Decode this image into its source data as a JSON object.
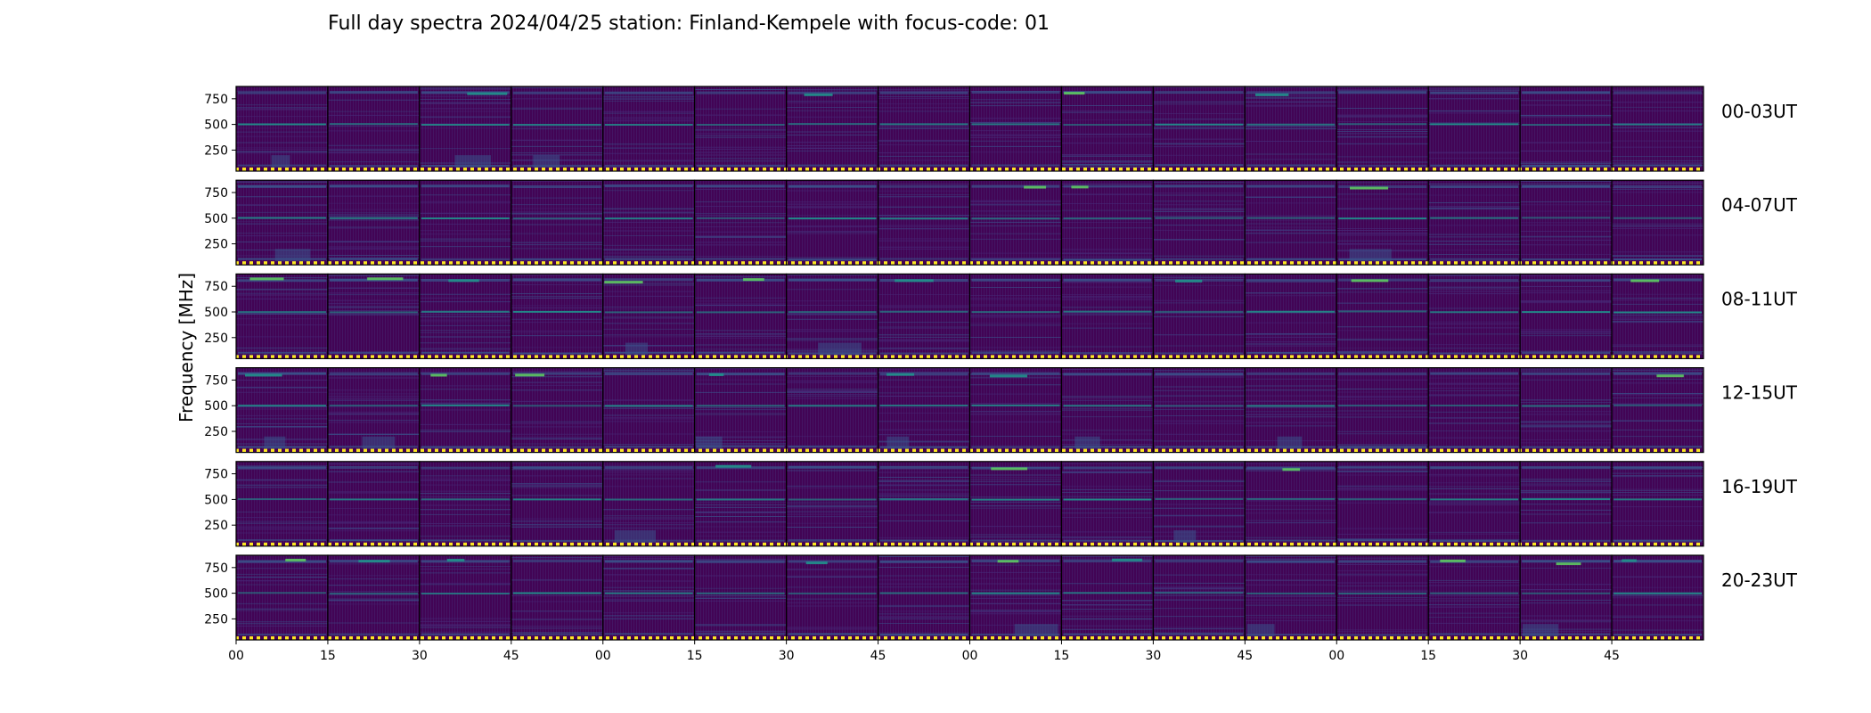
{
  "chart_data": {
    "type": "heatmap",
    "title": "Full day spectra 2024/04/25 station: Finland-Kempele with focus-code: 01",
    "ylabel": "Frequency [MHz]",
    "xlabel": "",
    "yticks": [
      250,
      500,
      750
    ],
    "ylim": [
      45,
      870
    ],
    "xtick_labels": [
      "00",
      "15",
      "30",
      "45",
      "00",
      "15",
      "30",
      "45",
      "00",
      "15",
      "30",
      "45",
      "00",
      "15",
      "30",
      "45"
    ],
    "panels_per_row": 16,
    "minutes_per_panel": 15,
    "rows": [
      {
        "label": "00-03UT"
      },
      {
        "label": "04-07UT"
      },
      {
        "label": "08-11UT"
      },
      {
        "label": "12-15UT"
      },
      {
        "label": "16-19UT"
      },
      {
        "label": "20-23UT"
      }
    ],
    "persistent_bands_mhz": [
      810,
      500,
      100,
      60
    ],
    "colormap": [
      "#440154",
      "#3b528b",
      "#21918c",
      "#5ec962",
      "#fde725"
    ]
  }
}
